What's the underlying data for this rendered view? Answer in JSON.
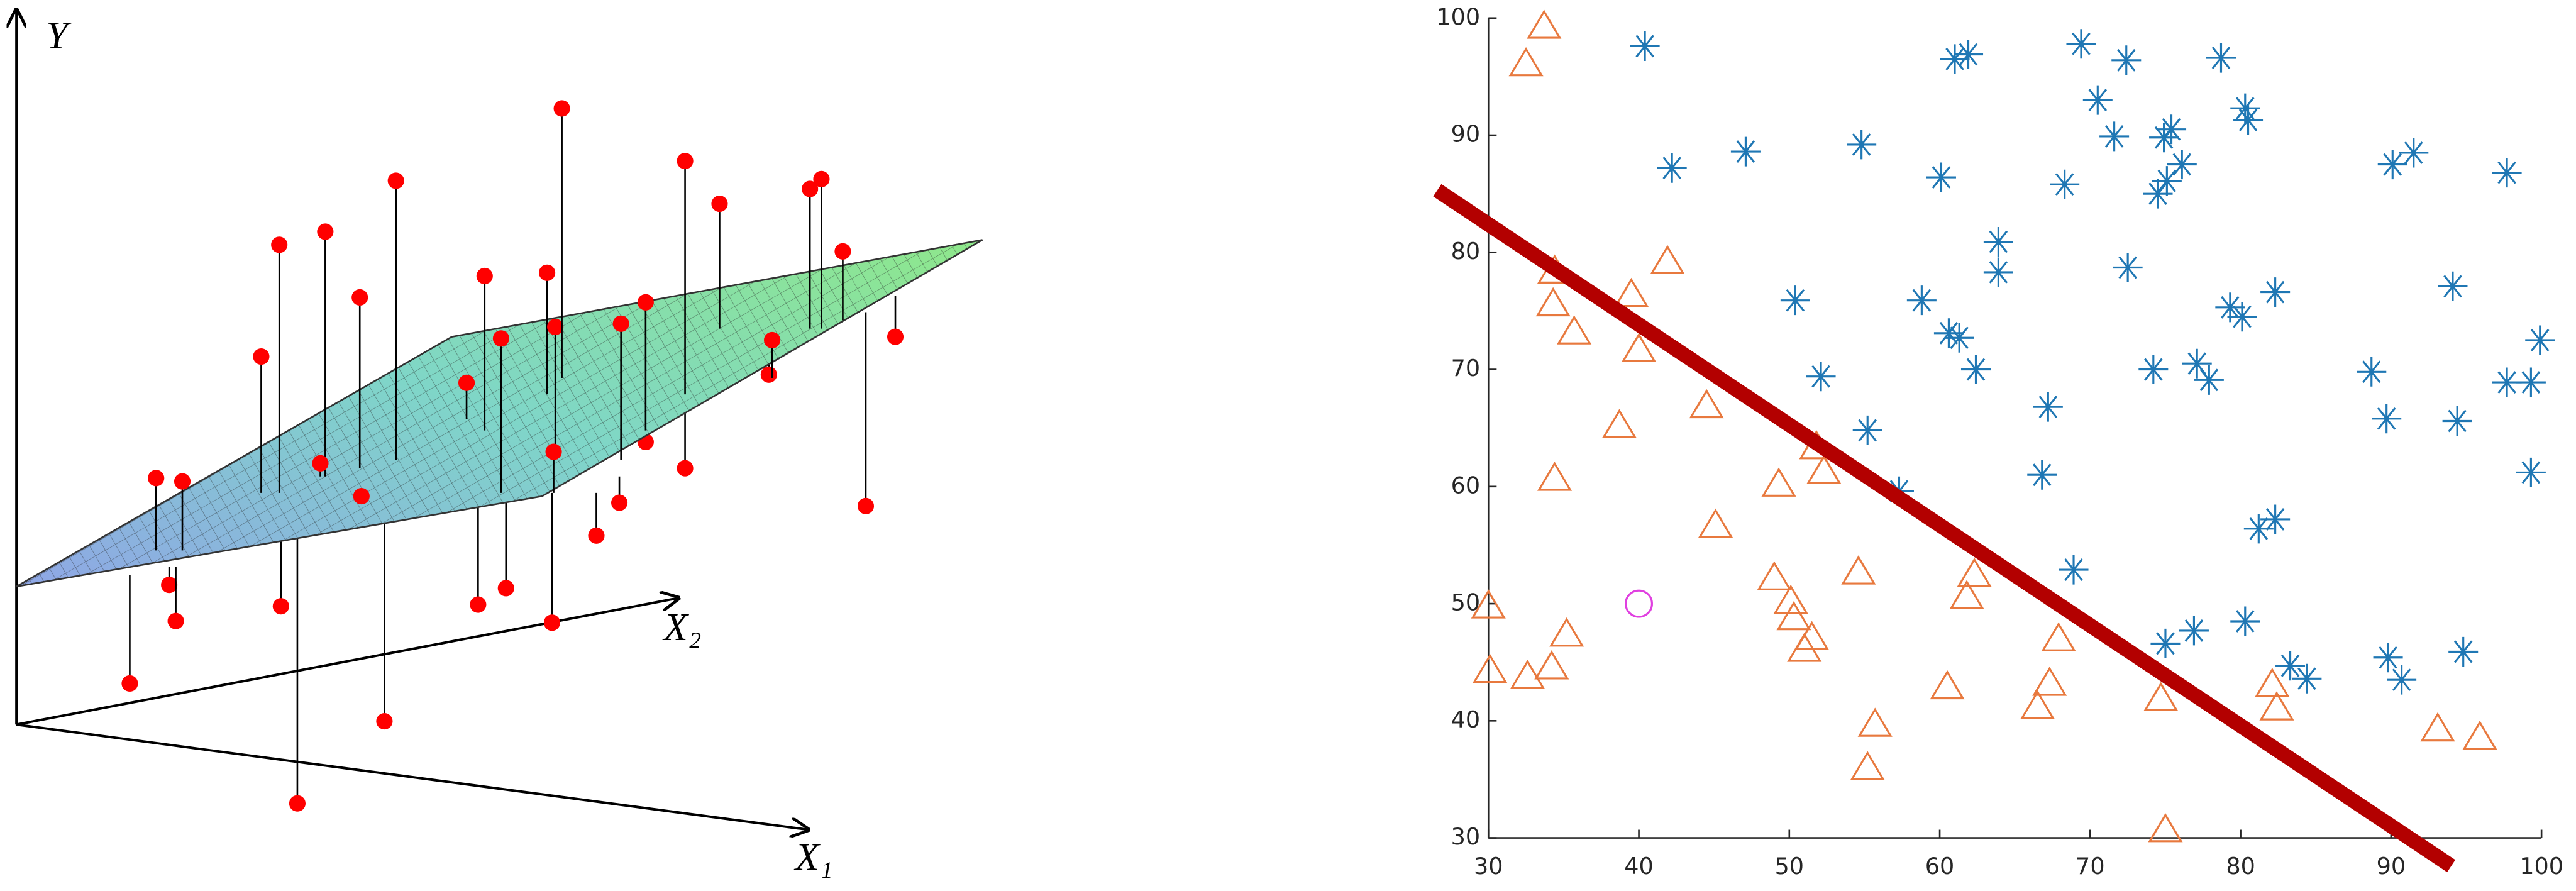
{
  "chart_data": [
    {
      "type": "3d-illustration",
      "y_label": "Y",
      "x2_label": "X₂",
      "x1_label": "X₁"
    },
    {
      "type": "scatter",
      "xlim": [
        30,
        100
      ],
      "ylim": [
        30,
        100
      ],
      "xticks": [
        30,
        40,
        50,
        60,
        70,
        80,
        90,
        100
      ],
      "yticks": [
        30,
        40,
        50,
        60,
        70,
        80,
        90,
        100
      ],
      "series": [
        {
          "marker": "asterisk",
          "color": "#1f77b4",
          "x": [
            40.4,
            61.0,
            61.9,
            69.4,
            72.4,
            78.7,
            80.3,
            80.5,
            70.5,
            42.2,
            47.1,
            54.8,
            60.1,
            68.3,
            71.6,
            74.9,
            75.4,
            76.1,
            74.5,
            75.1,
            90.1,
            91.5,
            97.7,
            63.9,
            63.9,
            72.5,
            50.4,
            58.8,
            60.6,
            61.3,
            62.4,
            52.1,
            67.2,
            74.2,
            77.1,
            77.9,
            79.3,
            80.1,
            82.3,
            94.1,
            88.7,
            89.7,
            94.4,
            97.7,
            99.3,
            99.9,
            99.3,
            55.2,
            57.3,
            66.8,
            81.2,
            82.3,
            68.9,
            75.0,
            76.9,
            80.3,
            83.3,
            84.4,
            89.8,
            90.7,
            94.8
          ],
          "values": [
            97.6,
            96.5,
            96.9,
            97.8,
            96.4,
            96.6,
            92.3,
            91.3,
            93.0,
            87.2,
            88.6,
            89.2,
            86.4,
            85.8,
            89.9,
            89.8,
            90.5,
            87.5,
            85.0,
            86.1,
            87.5,
            88.5,
            86.8,
            80.9,
            78.3,
            78.7,
            75.9,
            75.9,
            73.1,
            72.7,
            70.0,
            69.4,
            66.8,
            70.0,
            70.5,
            69.1,
            75.3,
            74.5,
            76.6,
            77.1,
            69.8,
            65.8,
            65.6,
            68.9,
            68.9,
            72.5,
            61.2,
            64.8,
            59.6,
            61.0,
            56.4,
            57.2,
            52.9,
            46.6,
            47.7,
            48.5,
            44.7,
            43.6,
            45.4,
            43.5,
            45.9
          ]
        },
        {
          "marker": "triangle",
          "color": "#e8793e",
          "x": [
            33.7,
            32.5,
            34.4,
            34.3,
            35.7,
            39.5,
            40.0,
            41.9,
            34.4,
            38.7,
            44.5,
            45.1,
            49.3,
            51.8,
            52.3,
            30.0,
            30.1,
            32.6,
            34.2,
            35.2,
            49.0,
            50.1,
            50.3,
            51.0,
            51.5,
            54.6,
            55.7,
            55.2,
            60.5,
            61.8,
            62.3,
            66.5,
            67.3,
            67.9,
            74.7,
            75.0,
            82.1,
            82.4,
            93.1,
            95.9
          ],
          "values": [
            99.3,
            96.1,
            78.4,
            75.6,
            73.2,
            76.4,
            71.7,
            79.2,
            60.7,
            65.2,
            66.9,
            56.7,
            60.2,
            63.4,
            61.3,
            49.8,
            44.3,
            43.8,
            44.6,
            47.4,
            52.2,
            50.2,
            48.8,
            46.1,
            47.1,
            52.7,
            39.7,
            36.0,
            42.9,
            50.6,
            52.5,
            41.2,
            43.2,
            47.0,
            41.9,
            30.7,
            43.1,
            41.1,
            39.3,
            38.6
          ]
        },
        {
          "marker": "circle",
          "color": "#e040e0",
          "x": [
            40
          ],
          "values": [
            50
          ]
        },
        {
          "marker": "line",
          "color": "#b30000",
          "x": [
            26.6,
            94.0
          ],
          "values": [
            85.3,
            27.6
          ]
        }
      ]
    }
  ]
}
